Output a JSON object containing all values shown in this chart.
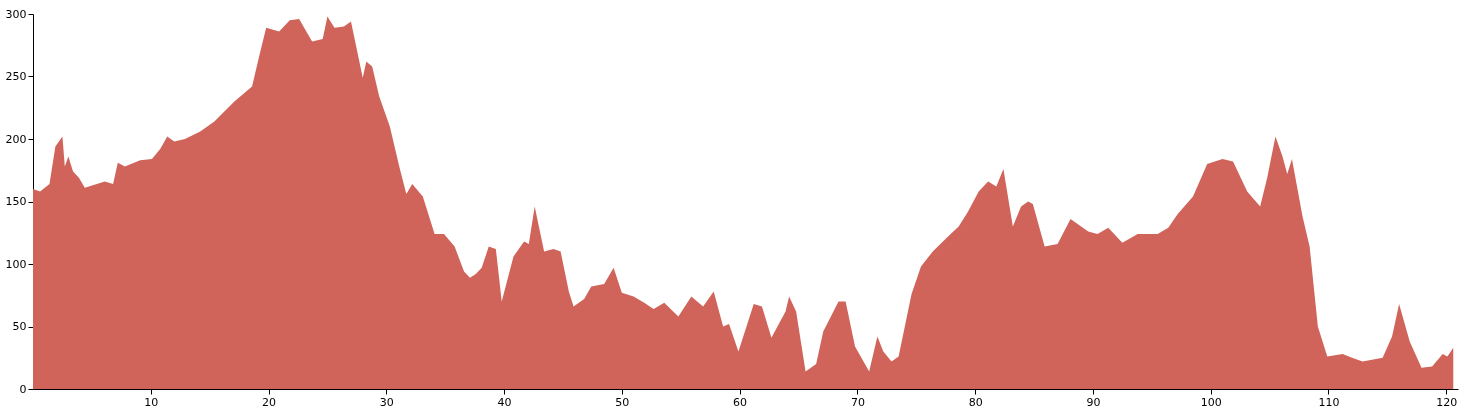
{
  "chart_data": {
    "type": "area",
    "xlim": [
      0,
      121
    ],
    "xticks": [
      10,
      20,
      30,
      40,
      50,
      60,
      70,
      80,
      90,
      100,
      110,
      120
    ],
    "ylim": [
      0,
      300
    ],
    "yticks": [
      0,
      50,
      100,
      150,
      200,
      250,
      300
    ],
    "grid": false,
    "series": [
      {
        "color": "#d0645a",
        "x": [
          0,
          0.6,
          1.4,
          1.9,
          2.5,
          2.7,
          3.0,
          3.4,
          3.9,
          4.4,
          6.1,
          6.8,
          7.2,
          7.8,
          9.1,
          10.1,
          10.8,
          11.4,
          12.0,
          12.9,
          14.2,
          15.4,
          17.1,
          18.6,
          19.2,
          19.8,
          20.9,
          21.8,
          22.6,
          23.7,
          24.6,
          25.0,
          25.6,
          26.4,
          27.0,
          28.0,
          28.3,
          28.8,
          29.4,
          30.3,
          31.1,
          31.7,
          32.2,
          33.1,
          34.1,
          34.9,
          35.8,
          36.6,
          37.1,
          37.6,
          38.1,
          38.7,
          39.3,
          39.8,
          40.8,
          41.7,
          42.1,
          42.6,
          43.4,
          44.2,
          44.8,
          45.5,
          45.9,
          46.8,
          47.4,
          48.5,
          49.3,
          50.0,
          51.0,
          51.9,
          52.7,
          53.6,
          54.8,
          55.9,
          56.9,
          57.8,
          58.6,
          59.1,
          59.9,
          61.2,
          61.9,
          62.7,
          63.9,
          64.2,
          64.8,
          65.6,
          66.5,
          67.1,
          68.4,
          69.0,
          69.8,
          71.0,
          71.7,
          72.2,
          72.9,
          73.5,
          74.6,
          75.4,
          76.4,
          77.7,
          78.6,
          79.4,
          80.3,
          81.1,
          81.8,
          82.4,
          83.2,
          83.9,
          84.5,
          84.9,
          85.9,
          87.0,
          88.1,
          89.6,
          90.4,
          91.3,
          92.5,
          93.8,
          95.5,
          96.4,
          97.2,
          98.5,
          99.7,
          101.0,
          101.9,
          103.1,
          104.2,
          104.8,
          105.5,
          106.1,
          106.5,
          106.9,
          107.8,
          108.4,
          109.1,
          109.9,
          111.2,
          112.0,
          112.9,
          114.6,
          115.4,
          116.0,
          116.9,
          117.9,
          118.8,
          119.7,
          120.1,
          120.6
        ],
        "values": [
          160,
          158,
          164,
          194,
          202,
          178,
          186,
          174,
          169,
          161,
          166,
          164,
          181,
          178,
          183,
          184,
          192,
          202,
          198,
          200,
          206,
          214,
          230,
          242,
          266,
          289,
          286,
          295,
          296,
          278,
          280,
          298,
          289,
          290,
          294,
          249,
          262,
          258,
          234,
          210,
          178,
          156,
          164,
          154,
          124,
          124,
          114,
          94,
          89,
          92,
          97,
          114,
          112,
          70,
          106,
          118,
          116,
          146,
          110,
          112,
          110,
          78,
          66,
          72,
          82,
          84,
          97,
          77,
          74,
          69,
          64,
          69,
          58,
          74,
          66,
          78,
          50,
          52,
          30,
          68,
          66,
          41,
          62,
          74,
          62,
          14,
          20,
          46,
          70,
          70,
          34,
          14,
          42,
          30,
          22,
          26,
          76,
          98,
          110,
          122,
          130,
          142,
          158,
          166,
          162,
          176,
          130,
          146,
          150,
          148,
          114,
          116,
          136,
          126,
          124,
          129,
          117,
          124,
          124,
          129,
          140,
          154,
          180,
          184,
          182,
          158,
          146,
          169,
          202,
          186,
          172,
          184,
          138,
          114,
          50,
          26,
          28,
          25,
          22,
          25,
          42,
          68,
          38,
          17,
          18,
          28,
          26,
          33
        ]
      }
    ]
  }
}
